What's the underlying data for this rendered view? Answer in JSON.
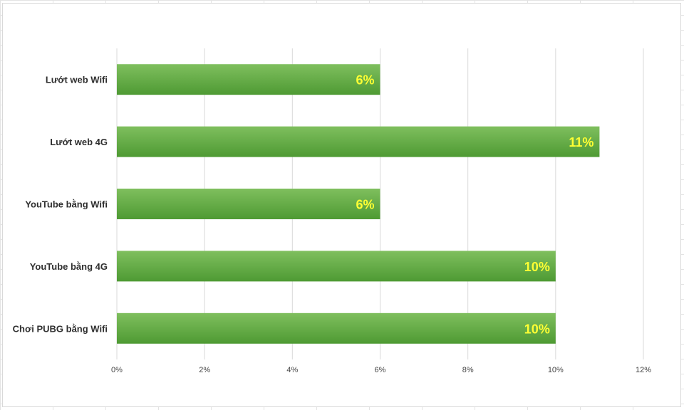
{
  "chart_data": {
    "type": "bar",
    "orientation": "horizontal",
    "categories": [
      "Lướt web Wifi",
      "Lướt web 4G",
      "YouTube bằng Wifi",
      "YouTube bằng 4G",
      "Chơi PUBG bằng Wifi"
    ],
    "values": [
      6,
      11,
      6,
      10,
      10
    ],
    "data_labels": [
      "6%",
      "11%",
      "6%",
      "10%",
      "10%"
    ],
    "xticks": [
      0,
      2,
      4,
      6,
      8,
      10,
      12
    ],
    "xtick_labels": [
      "0%",
      "2%",
      "4%",
      "6%",
      "8%",
      "10%",
      "12%"
    ],
    "xlim": [
      0,
      12
    ],
    "grid": "vertical",
    "legend": "none",
    "title": "",
    "xlabel": "",
    "ylabel": "",
    "colors": {
      "bar_top": "#7fbf5e",
      "bar_bottom": "#4e9a33",
      "data_label": "#ffff33",
      "gridline": "#d9d9d9"
    }
  }
}
